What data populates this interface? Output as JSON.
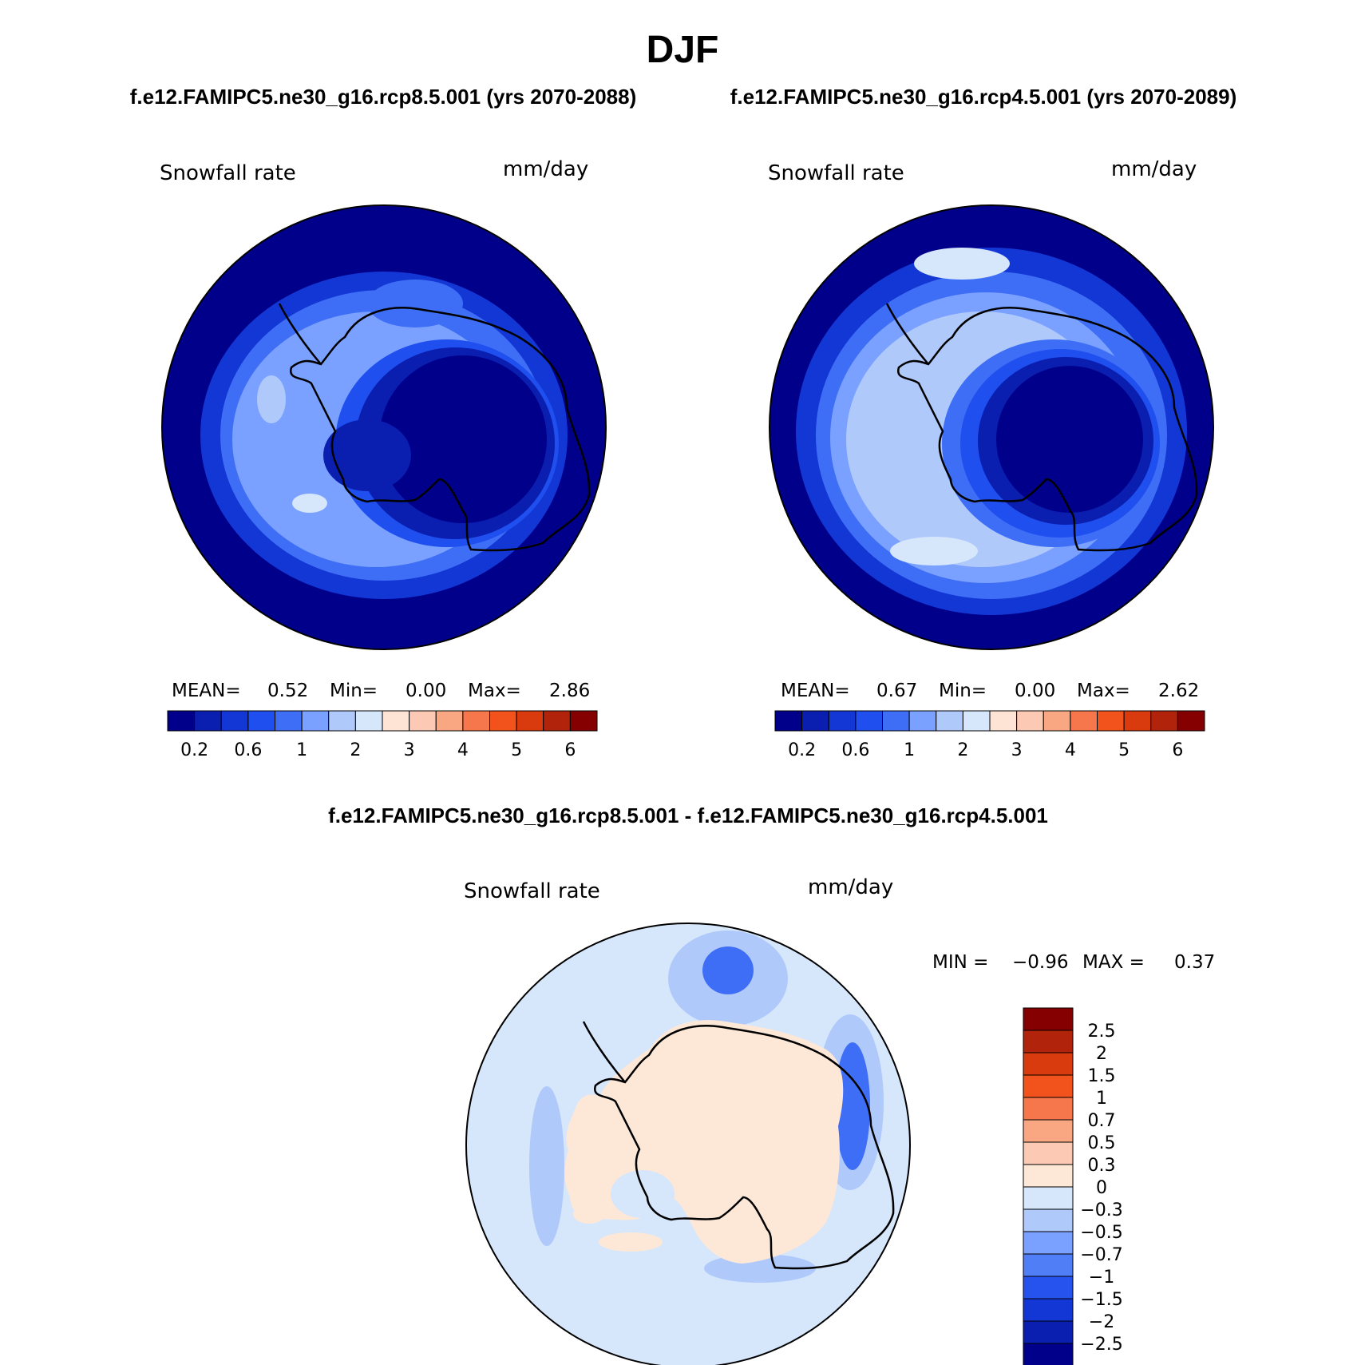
{
  "title": "DJF",
  "subtitle_left": "f.e12.FAMIPC5.ne30_g16.rcp8.5.001 (yrs 2070-2088)",
  "subtitle_right": "f.e12.FAMIPC5.ne30_g16.rcp4.5.001 (yrs 2070-2089)",
  "diff_title": "f.e12.FAMIPC5.ne30_g16.rcp8.5.001 - f.e12.FAMIPC5.ne30_g16.rcp4.5.001",
  "variable": "Snowfall rate",
  "units": "mm/day",
  "panels": [
    {
      "mean_label": "MEAN=",
      "mean": "0.52",
      "min_label": "Min=",
      "min": "0.00",
      "max_label": "Max=",
      "max": "2.86"
    },
    {
      "mean_label": "MEAN=",
      "mean": "0.67",
      "min_label": "Min=",
      "min": "0.00",
      "max_label": "Max=",
      "max": "2.62"
    }
  ],
  "diff_stats": {
    "min_label": "MIN =",
    "min": "−0.96",
    "max_label": "MAX =",
    "max": "0.37"
  },
  "colorbar": {
    "colors": [
      "#00008b",
      "#0a1fb0",
      "#1337d4",
      "#1f4fee",
      "#3f6ef6",
      "#7aa1ff",
      "#b0c9fb",
      "#d6e6fb",
      "#fde4d4",
      "#fccab4",
      "#f9a783",
      "#f7774d",
      "#f2521c",
      "#d93b0e",
      "#b2230b",
      "#850000"
    ],
    "labels": [
      "0.2",
      "0.6",
      "1",
      "2",
      "3",
      "4",
      "5",
      "6"
    ]
  },
  "diff_colorbar": {
    "colors": [
      "#850000",
      "#b2230b",
      "#d93b0e",
      "#f2521c",
      "#f7774d",
      "#f9a783",
      "#fccab4",
      "#fde8d8",
      "#d6e6fb",
      "#b0c9fb",
      "#7aa1ff",
      "#4f7ef6",
      "#2652ee",
      "#1337d4",
      "#0a1fb0",
      "#00008b"
    ],
    "labels": [
      "2.5",
      "2",
      "1.5",
      "1",
      "0.7",
      "0.5",
      "0.3",
      "0",
      "−0.3",
      "−0.5",
      "−0.7",
      "−1",
      "−1.5",
      "−2",
      "−2.5"
    ]
  }
}
